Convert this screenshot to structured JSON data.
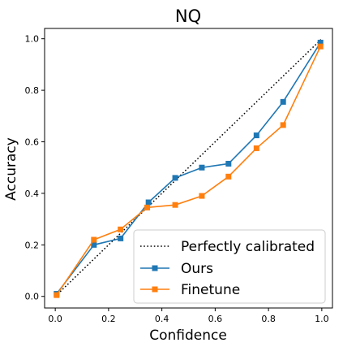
{
  "chart_data": {
    "type": "line",
    "title": "NQ",
    "xlabel": "Confidence",
    "ylabel": "Accuracy",
    "xlim": [
      -0.04,
      1.04
    ],
    "ylim": [
      -0.045,
      1.04
    ],
    "xticks": [
      0.0,
      0.2,
      0.4,
      0.6,
      0.8,
      1.0
    ],
    "yticks": [
      0.0,
      0.2,
      0.4,
      0.6,
      0.8,
      1.0
    ],
    "xtick_labels": [
      "0.0",
      "0.2",
      "0.4",
      "0.6",
      "0.8",
      "1.0"
    ],
    "ytick_labels": [
      "0.0",
      "0.2",
      "0.4",
      "0.6",
      "0.8",
      "1.0"
    ],
    "grid": false,
    "legend_position": "bottom-right",
    "series": [
      {
        "name": "Perfectly calibrated",
        "style": "dotted",
        "color": "#000000",
        "marker": "none",
        "x": [
          0.0,
          1.0
        ],
        "y": [
          0.0,
          1.0
        ]
      },
      {
        "name": "Ours",
        "style": "solid",
        "color": "#1f77b4",
        "marker": "square",
        "x": [
          0.005,
          0.145,
          0.245,
          0.35,
          0.45,
          0.55,
          0.65,
          0.755,
          0.855,
          0.995
        ],
        "y": [
          0.01,
          0.2,
          0.225,
          0.365,
          0.46,
          0.5,
          0.515,
          0.625,
          0.755,
          0.985
        ]
      },
      {
        "name": "Finetune",
        "style": "solid",
        "color": "#ff7f0e",
        "marker": "square",
        "x": [
          0.005,
          0.145,
          0.245,
          0.345,
          0.45,
          0.55,
          0.65,
          0.755,
          0.855,
          0.995
        ],
        "y": [
          0.005,
          0.22,
          0.26,
          0.345,
          0.355,
          0.39,
          0.465,
          0.575,
          0.665,
          0.97
        ]
      }
    ]
  }
}
